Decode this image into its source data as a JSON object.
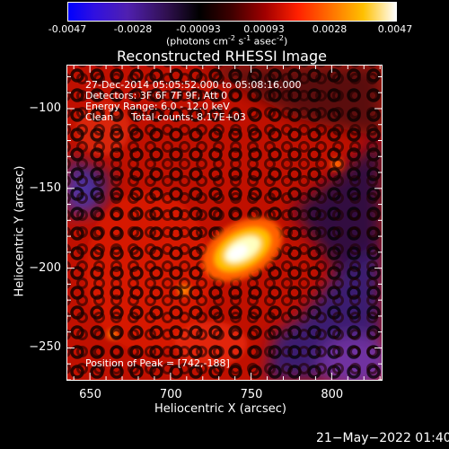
{
  "colorbar": {
    "tick_labels": [
      "-0.0047",
      "-0.0028",
      "-0.00093",
      "0.00093",
      "0.0028",
      "0.0047"
    ],
    "units_prefix": "(photons cm",
    "units_exp1": "-2",
    "units_mid1": " s",
    "units_exp2": "-1",
    "units_mid2": " asec",
    "units_exp3": "-2",
    "units_suffix": ")"
  },
  "image": {
    "title": "Reconstructed RHESSI Image",
    "annotations": {
      "time_range": "27-Dec-2014 05:05:52.000 to 05:08:16.000",
      "detectors": "Detectors: 3F 6F 7F 9F, Att 0",
      "energy_range": "Energy Range: 6.0 - 12.0 keV",
      "method": "Clean",
      "total_counts": "Total counts: 8.17E+03",
      "peak_position": "Position of Peak = [742,-188]"
    }
  },
  "chart_data": {
    "type": "heatmap",
    "title": "Reconstructed RHESSI Image",
    "xlabel": "Heliocentric X (arcsec)",
    "ylabel": "Heliocentric Y (arcsec)",
    "xlim": [
      636,
      831
    ],
    "ylim": [
      -270,
      -73
    ],
    "x_ticks": [
      650,
      700,
      750,
      800
    ],
    "y_ticks": [
      -100,
      -150,
      -200,
      -250
    ],
    "x_tick_labels": [
      "650",
      "700",
      "750",
      "800"
    ],
    "y_tick_labels": [
      "−100",
      "−150",
      "−200",
      "−250"
    ],
    "value_range": [
      -0.0047,
      0.0047
    ],
    "colormap": "red-temperature (blue-purple-black-red-yellow-white)",
    "peak": {
      "x": 742,
      "y": -188
    },
    "colors": {
      "negative": "#0000ff",
      "zero": "#000000",
      "positive_mid": "#ff2a00",
      "max": "#ffffff"
    }
  },
  "footer": {
    "date": "21−May−2022 01:40"
  }
}
